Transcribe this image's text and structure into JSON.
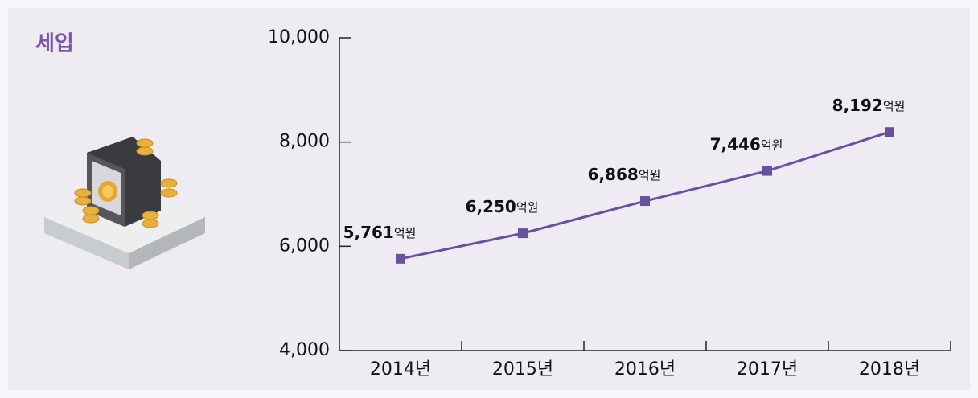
{
  "chart_data": {
    "type": "line",
    "title": "세입",
    "categories": [
      "2014년",
      "2015년",
      "2016년",
      "2017년",
      "2018년"
    ],
    "series": [
      {
        "color": "#6a50a0",
        "values": [
          5761,
          6250,
          6868,
          7446,
          8192
        ],
        "value_labels": [
          "5,761",
          "6,250",
          "6,868",
          "7,446",
          "8,192"
        ]
      }
    ],
    "unit": "억원",
    "ylim": [
      4000,
      10000
    ],
    "yticks": [
      {
        "value": 4000,
        "label": "4,000"
      },
      {
        "value": 6000,
        "label": "6,000"
      },
      {
        "value": 8000,
        "label": "8,000"
      },
      {
        "value": 10000,
        "label": "10,000"
      }
    ]
  }
}
